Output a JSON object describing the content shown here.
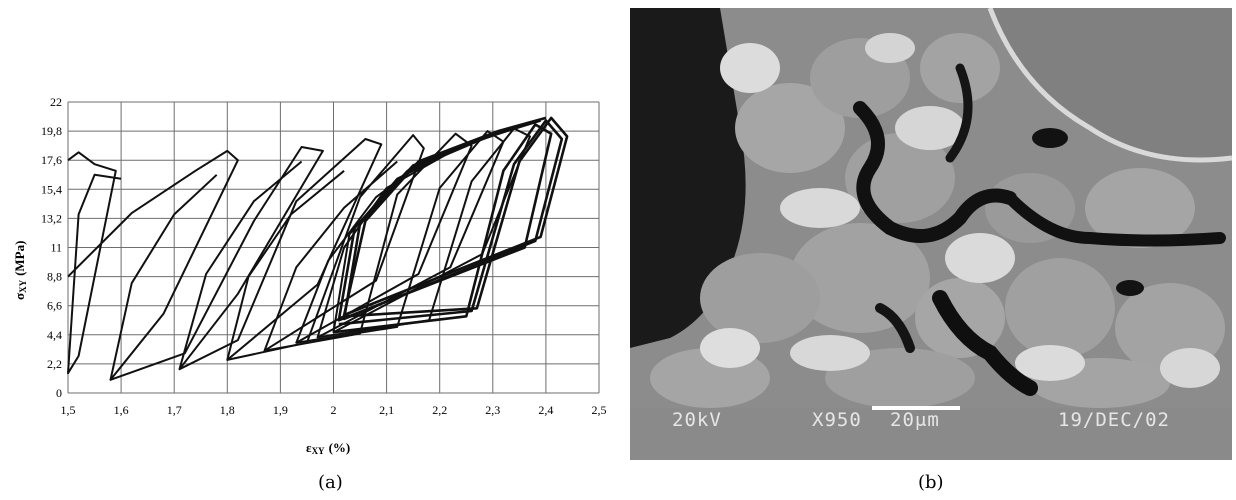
{
  "figure": {
    "caption_a": "(a)",
    "caption_b": "(b)"
  },
  "chart_data": {
    "type": "line",
    "xlabel_main": "ε",
    "xlabel_sub": "XY",
    "xlabel_unit": "(%)",
    "ylabel_main": "σ",
    "ylabel_sub": "XY",
    "ylabel_unit": "(MPa)",
    "xlim": [
      1.5,
      2.5
    ],
    "ylim": [
      0,
      22
    ],
    "x_ticks": [
      "1,5",
      "1,6",
      "1,7",
      "1,8",
      "1,9",
      "2",
      "2,1",
      "2,2",
      "2,3",
      "2,4",
      "2,5"
    ],
    "y_ticks": [
      "0",
      "2,2",
      "4,4",
      "6,6",
      "8,8",
      "11",
      "13,2",
      "15,4",
      "17,6",
      "19,8",
      "22"
    ],
    "grid": true,
    "line_color": "#111111",
    "series": [
      {
        "x": [
          1.5,
          1.52,
          1.55,
          1.59,
          1.52,
          1.5,
          1.52,
          1.55,
          1.6
        ],
        "y": [
          17.6,
          18.2,
          17.3,
          16.8,
          2.8,
          1.5,
          13.5,
          16.5,
          16.2
        ]
      },
      {
        "x": [
          1.5,
          1.62,
          1.74,
          1.8,
          1.82,
          1.68,
          1.58,
          1.62,
          1.7,
          1.78
        ],
        "y": [
          8.8,
          13.6,
          16.8,
          18.3,
          17.6,
          6.0,
          1.0,
          8.3,
          13.5,
          16.5
        ]
      },
      {
        "x": [
          1.58,
          1.72,
          1.85,
          1.94,
          1.98,
          1.82,
          1.71,
          1.76,
          1.85,
          1.94
        ],
        "y": [
          1.0,
          3.0,
          13.0,
          18.6,
          18.3,
          7.5,
          1.8,
          9.0,
          14.5,
          17.5
        ]
      },
      {
        "x": [
          1.71,
          1.82,
          1.93,
          2.06,
          2.09,
          1.97,
          1.8,
          1.84,
          1.92,
          2.02
        ],
        "y": [
          1.8,
          4.0,
          14.5,
          19.2,
          18.8,
          8.2,
          2.5,
          8.8,
          13.5,
          16.8
        ]
      },
      {
        "x": [
          1.8,
          1.95,
          2.05,
          2.15,
          2.17,
          2.08,
          1.87,
          1.93,
          2.02,
          2.12
        ],
        "y": [
          2.5,
          3.8,
          14.8,
          19.5,
          18.5,
          8.5,
          3.2,
          9.5,
          14.0,
          17.5
        ]
      },
      {
        "x": [
          1.87,
          2.05,
          2.12,
          2.23,
          2.26,
          2.16,
          1.93,
          1.99,
          2.08,
          2.18
        ],
        "y": [
          3.2,
          4.5,
          15.0,
          19.6,
          18.7,
          9.0,
          3.8,
          10.0,
          14.8,
          17.8
        ]
      },
      {
        "x": [
          1.93,
          2.12,
          2.2,
          2.29,
          2.32,
          2.22,
          1.97,
          2.02,
          2.1,
          2.22
        ],
        "y": [
          3.8,
          5.0,
          15.5,
          19.8,
          19.0,
          9.5,
          4.2,
          11.0,
          15.5,
          18.2
        ]
      },
      {
        "x": [
          1.97,
          2.18,
          2.26,
          2.34,
          2.37,
          2.28,
          2.0,
          2.03,
          2.12,
          2.25
        ],
        "y": [
          4.2,
          5.5,
          16.0,
          20.0,
          19.4,
          10.5,
          4.6,
          12.0,
          16.2,
          18.8
        ]
      },
      {
        "x": [
          2.0,
          2.25,
          2.32,
          2.38,
          2.41,
          2.36,
          2.01,
          2.04,
          2.14,
          2.28,
          2.37
        ],
        "y": [
          4.6,
          5.8,
          16.8,
          20.3,
          19.6,
          11.0,
          5.5,
          12.5,
          16.8,
          19.2,
          20.4
        ]
      },
      {
        "x": [
          2.01,
          2.26,
          2.34,
          2.4,
          2.43,
          2.38,
          2.02,
          2.05,
          2.15,
          2.3,
          2.39
        ],
        "y": [
          5.2,
          6.2,
          17.3,
          20.6,
          19.2,
          11.5,
          5.6,
          12.8,
          17.2,
          19.5,
          20.6
        ]
      },
      {
        "x": [
          2.02,
          2.27,
          2.35,
          2.41,
          2.44,
          2.39,
          2.02,
          2.06,
          2.16,
          2.31,
          2.4
        ],
        "y": [
          5.8,
          6.4,
          17.5,
          20.8,
          19.4,
          11.8,
          5.9,
          13.0,
          17.5,
          19.8,
          20.8
        ]
      }
    ]
  },
  "micrograph": {
    "voltage": "20kV",
    "magnification": "X950",
    "scale_label": "20μm",
    "date": "19/DEC/02"
  }
}
